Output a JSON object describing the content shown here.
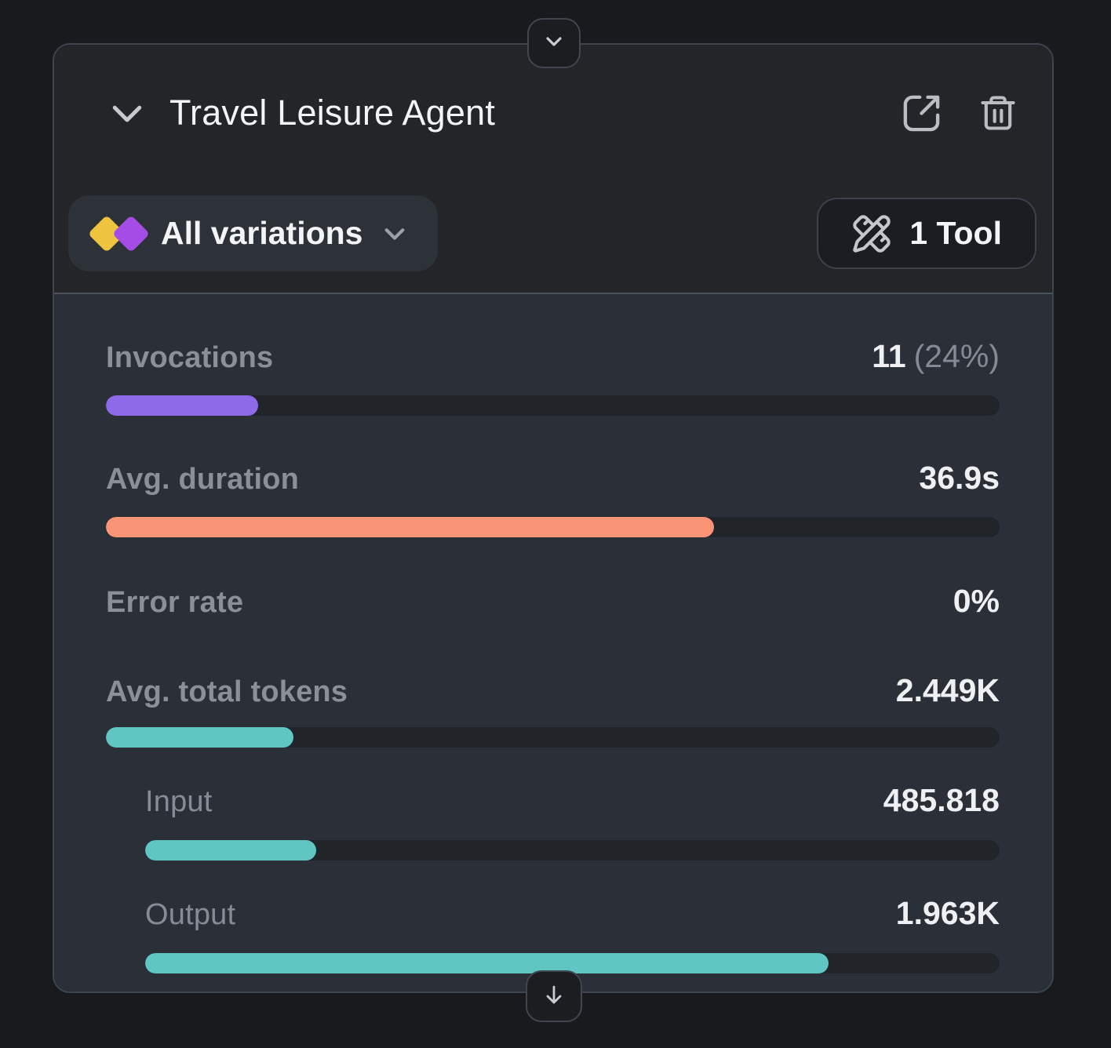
{
  "header": {
    "title": "Travel Leisure Agent",
    "collapse_icon": "chevron-down",
    "open_icon": "external-link",
    "delete_icon": "trash"
  },
  "toolbar": {
    "variations_label": "All variations",
    "tools_label": "1 Tool",
    "diamond_yellow": "#eec33e",
    "diamond_purple": "#a44ce6"
  },
  "metrics": [
    {
      "label": "Invocations",
      "value": "11",
      "value_suffix": "(24%)",
      "bar_pct": 17,
      "bar_color": "#8c6ae8"
    },
    {
      "label": "Avg. duration",
      "value": "36.9s",
      "bar_pct": 68,
      "bar_color": "#f99576"
    },
    {
      "label": "Error rate",
      "value": "0%"
    },
    {
      "label": "Avg. total tokens",
      "value": "2.449K",
      "bar_pct": 21,
      "bar_color": "#5fc6c2"
    },
    {
      "label": "Input",
      "value": "485.818",
      "bar_pct": 20,
      "bar_color": "#5fc6c2"
    },
    {
      "label": "Output",
      "value": "1.963K",
      "bar_pct": 80,
      "bar_color": "#5fc6c2"
    }
  ]
}
